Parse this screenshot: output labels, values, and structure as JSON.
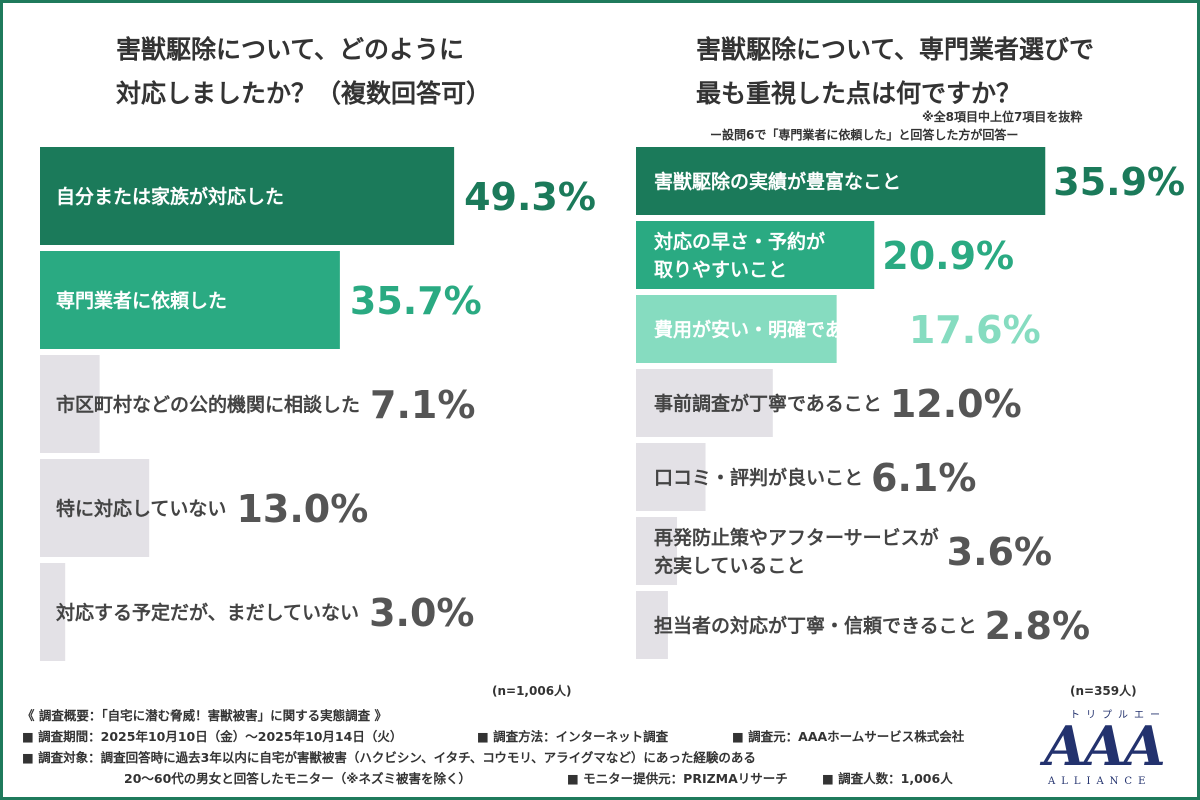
{
  "chart_data": [
    {
      "type": "bar",
      "orientation": "horizontal",
      "title_lines": [
        "害獣駆除について、どのように",
        "対応しましたか？（複数回答可）"
      ],
      "categories": [
        [
          "自分または家族が対応した"
        ],
        [
          "専門業者に依頼した"
        ],
        [
          "市区町村などの公的機関に相談した"
        ],
        [
          "特に対応していない"
        ],
        [
          "対応する予定だが、まだしていない"
        ]
      ],
      "values": [
        49.3,
        35.7,
        7.1,
        13.0,
        3.0
      ],
      "value_labels": [
        "49.3%",
        "35.7%",
        "7.1%",
        "13.0%",
        "3.0%"
      ],
      "colors": [
        "#1b7a5a",
        "#2aaa82",
        "#e3e1e6",
        "#e3e1e6",
        "#e3e1e6"
      ],
      "n": "(n=1,006人)"
    },
    {
      "type": "bar",
      "orientation": "horizontal",
      "title_lines": [
        "害獣駆除について、専門業者選びで",
        "最も重視した点は何ですか？"
      ],
      "notes": [
        "※全8項目中上位7項目を抜粋",
        "ー設問6で「専門業者に依頼した」と回答した方が回答ー"
      ],
      "categories": [
        [
          "害獣駆除の実績が豊富なこと"
        ],
        [
          "対応の早さ・予約が",
          "取りやすいこと"
        ],
        [
          "費用が安い・明確であること"
        ],
        [
          "事前調査が丁寧であること"
        ],
        [
          "口コミ・評判が良いこと"
        ],
        [
          "再発防止策やアフターサービスが",
          "充実していること"
        ],
        [
          "担当者の対応が丁寧・信頼できること"
        ]
      ],
      "values": [
        35.9,
        20.9,
        17.6,
        12.0,
        6.1,
        3.6,
        2.8
      ],
      "value_labels": [
        "35.9%",
        "20.9%",
        "17.6%",
        "12.0%",
        "6.1%",
        "3.6%",
        "2.8%"
      ],
      "colors": [
        "#1b7a5a",
        "#2aaa82",
        "#86dcc0",
        "#e3e1e6",
        "#e3e1e6",
        "#e3e1e6",
        "#e3e1e6"
      ],
      "n": "(n=359人)"
    }
  ],
  "footer": {
    "line1": "《 調査概要：「自宅に潜む脅威！害獣被害」に関する実態調査 》",
    "period": "■ 調査期間：2025年10月10日（金）〜2025年10月14日（火）",
    "method": "■ 調査方法：インターネット調査",
    "source": "■ 調査元：AAAホームサービス株式会社",
    "target1": "■ 調査対象：調査回答時に過去3年以内に自宅が害獣被害（ハクビシン、イタチ、コウモリ、アライグマなど）にあった経験のある",
    "target2": "20〜60代の男女と回答したモニター（※ネズミ被害を除く）",
    "provider": "■ モニター提供元：PRIZMAリサーチ",
    "count": "■ 調査人数：1,006人"
  },
  "logo": {
    "kana": "トリプルエー",
    "main": "AAA",
    "sub": "ALLIANCE",
    "color": "#23326e"
  }
}
